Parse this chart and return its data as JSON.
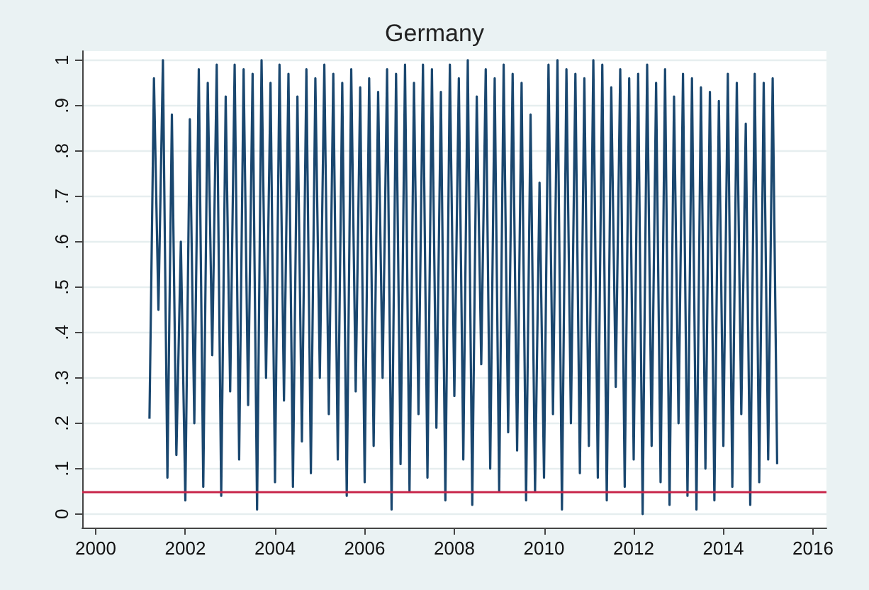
{
  "chart_data": {
    "type": "line",
    "title": "Germany",
    "x": [
      2001.2,
      2001.3,
      2001.4,
      2001.5,
      2001.6,
      2001.7,
      2001.8,
      2001.9,
      2002.0,
      2002.1,
      2002.2,
      2002.3,
      2002.4,
      2002.5,
      2002.6,
      2002.7,
      2002.8,
      2002.9,
      2003.0,
      2003.1,
      2003.2,
      2003.3,
      2003.4,
      2003.5,
      2003.6,
      2003.7,
      2003.8,
      2003.9,
      2004.0,
      2004.1,
      2004.2,
      2004.3,
      2004.4,
      2004.5,
      2004.6,
      2004.7,
      2004.8,
      2004.9,
      2005.0,
      2005.1,
      2005.2,
      2005.3,
      2005.4,
      2005.5,
      2005.6,
      2005.7,
      2005.8,
      2005.9,
      2006.0,
      2006.1,
      2006.2,
      2006.3,
      2006.4,
      2006.5,
      2006.6,
      2006.7,
      2006.8,
      2006.9,
      2007.0,
      2007.1,
      2007.2,
      2007.3,
      2007.4,
      2007.5,
      2007.6,
      2007.7,
      2007.8,
      2007.9,
      2008.0,
      2008.1,
      2008.2,
      2008.3,
      2008.4,
      2008.5,
      2008.6,
      2008.7,
      2008.8,
      2008.9,
      2009.0,
      2009.1,
      2009.2,
      2009.3,
      2009.4,
      2009.5,
      2009.6,
      2009.7,
      2009.8,
      2009.9,
      2010.0,
      2010.1,
      2010.2,
      2010.3,
      2010.4,
      2010.5,
      2010.6,
      2010.7,
      2010.8,
      2010.9,
      2011.0,
      2011.1,
      2011.2,
      2011.3,
      2011.4,
      2011.5,
      2011.6,
      2011.7,
      2011.8,
      2011.9,
      2012.0,
      2012.1,
      2012.2,
      2012.3,
      2012.4,
      2012.5,
      2012.6,
      2012.7,
      2012.8,
      2012.9,
      2013.0,
      2013.1,
      2013.2,
      2013.3,
      2013.4,
      2013.5,
      2013.6,
      2013.7,
      2013.8,
      2013.9,
      2014.0,
      2014.1,
      2014.2,
      2014.3,
      2014.4,
      2014.5,
      2014.6,
      2014.7,
      2014.8,
      2014.9,
      2015.0,
      2015.1,
      2015.2
    ],
    "values": [
      0.21,
      0.96,
      0.45,
      1.0,
      0.08,
      0.88,
      0.13,
      0.6,
      0.03,
      0.87,
      0.2,
      0.98,
      0.06,
      0.95,
      0.35,
      0.99,
      0.04,
      0.92,
      0.27,
      0.99,
      0.12,
      0.98,
      0.24,
      0.97,
      0.01,
      1.0,
      0.3,
      0.95,
      0.07,
      0.99,
      0.25,
      0.97,
      0.06,
      0.92,
      0.16,
      0.98,
      0.09,
      0.96,
      0.3,
      0.99,
      0.22,
      0.97,
      0.12,
      0.95,
      0.04,
      0.98,
      0.27,
      0.94,
      0.07,
      0.96,
      0.15,
      0.93,
      0.3,
      0.98,
      0.01,
      0.97,
      0.11,
      0.99,
      0.05,
      0.95,
      0.22,
      0.99,
      0.08,
      0.98,
      0.19,
      0.93,
      0.03,
      0.99,
      0.26,
      0.96,
      0.12,
      1.0,
      0.02,
      0.92,
      0.33,
      0.98,
      0.1,
      0.96,
      0.05,
      0.99,
      0.18,
      0.97,
      0.14,
      0.95,
      0.03,
      0.88,
      0.05,
      0.73,
      0.08,
      0.99,
      0.22,
      1.0,
      0.01,
      0.98,
      0.2,
      0.97,
      0.09,
      0.96,
      0.15,
      1.0,
      0.08,
      0.99,
      0.03,
      0.94,
      0.28,
      0.98,
      0.06,
      0.96,
      0.12,
      0.97,
      0.0,
      0.99,
      0.15,
      0.95,
      0.07,
      0.98,
      0.02,
      0.92,
      0.2,
      0.97,
      0.04,
      0.96,
      0.01,
      0.94,
      0.1,
      0.93,
      0.03,
      0.91,
      0.15,
      0.97,
      0.06,
      0.95,
      0.22,
      0.86,
      0.02,
      0.97,
      0.07,
      0.95,
      0.12,
      0.96,
      0.11
    ],
    "color": "#1a476f",
    "marker": "none",
    "line_style": "solid",
    "xlim": [
      1999.7,
      2016.3
    ],
    "xticks": [
      2000,
      2002,
      2004,
      2006,
      2008,
      2010,
      2012,
      2014,
      2016
    ],
    "ylim": [
      -0.03,
      1.02
    ],
    "yticks": [
      {
        "value": 0,
        "label": "0"
      },
      {
        "value": 0.1,
        "label": ".1"
      },
      {
        "value": 0.2,
        "label": ".2"
      },
      {
        "value": 0.3,
        "label": ".3"
      },
      {
        "value": 0.4,
        "label": ".4"
      },
      {
        "value": 0.5,
        "label": ".5"
      },
      {
        "value": 0.6,
        "label": ".6"
      },
      {
        "value": 0.7,
        "label": ".7"
      },
      {
        "value": 0.8,
        "label": ".8"
      },
      {
        "value": 0.9,
        "label": ".9"
      },
      {
        "value": 1,
        "label": "1"
      }
    ],
    "grid": "y",
    "ref_lines": [
      {
        "axis": "y",
        "value": 0.05,
        "color": "#c8264a"
      }
    ]
  }
}
